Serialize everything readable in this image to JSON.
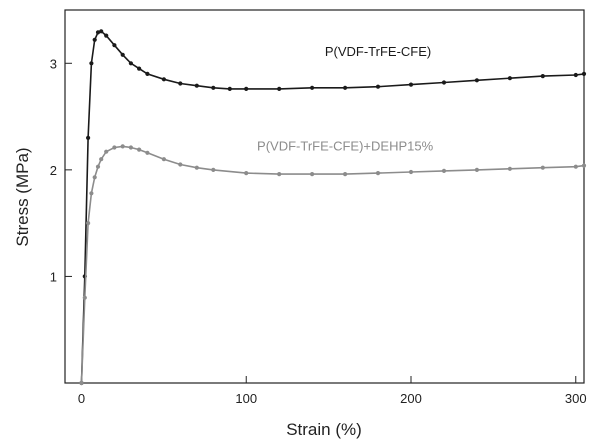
{
  "chart_data": {
    "type": "line",
    "title": "",
    "xlabel": "Strain (%)",
    "ylabel": "Stress (MPa)",
    "xlim": [
      -10,
      305
    ],
    "ylim": [
      0,
      3.5
    ],
    "xticks": [
      0,
      100,
      200,
      300
    ],
    "yticks": [
      1,
      2,
      3
    ],
    "grid": false,
    "series": [
      {
        "name": "P(VDF-TrFE-CFE)",
        "color": "#1a1a1a",
        "marker": "circle",
        "label_position": [
          180,
          3.07
        ],
        "x": [
          0,
          2,
          4,
          6,
          8,
          10,
          12,
          15,
          20,
          25,
          30,
          35,
          40,
          50,
          60,
          70,
          80,
          90,
          100,
          120,
          140,
          160,
          180,
          200,
          220,
          240,
          260,
          280,
          300,
          305
        ],
        "y": [
          0.0,
          1.0,
          2.3,
          3.0,
          3.22,
          3.29,
          3.3,
          3.26,
          3.17,
          3.08,
          3.0,
          2.95,
          2.9,
          2.85,
          2.81,
          2.79,
          2.77,
          2.76,
          2.76,
          2.76,
          2.77,
          2.77,
          2.78,
          2.8,
          2.82,
          2.84,
          2.86,
          2.88,
          2.89,
          2.9
        ]
      },
      {
        "name": "P(VDF-TrFE-CFE)+DEHP15%",
        "color": "#8c8c8c",
        "marker": "circle",
        "label_position": [
          160,
          2.18
        ],
        "x": [
          0,
          2,
          4,
          6,
          8,
          10,
          12,
          15,
          20,
          25,
          30,
          35,
          40,
          50,
          60,
          70,
          80,
          100,
          120,
          140,
          160,
          180,
          200,
          220,
          240,
          260,
          280,
          300,
          305
        ],
        "y": [
          0.0,
          0.8,
          1.5,
          1.78,
          1.93,
          2.03,
          2.1,
          2.17,
          2.21,
          2.22,
          2.21,
          2.19,
          2.16,
          2.1,
          2.05,
          2.02,
          2.0,
          1.97,
          1.96,
          1.96,
          1.96,
          1.97,
          1.98,
          1.99,
          2.0,
          2.01,
          2.02,
          2.03,
          2.04
        ]
      }
    ]
  }
}
